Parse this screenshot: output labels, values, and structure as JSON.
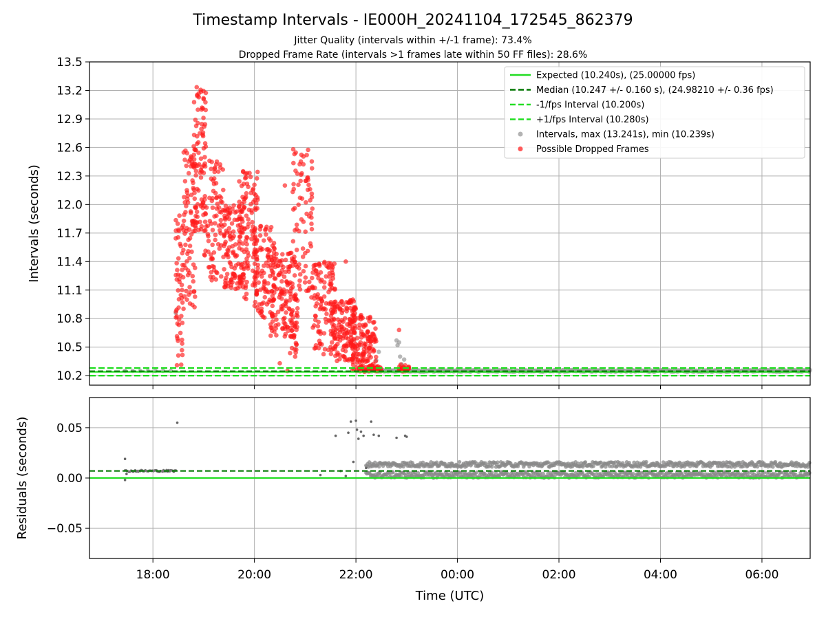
{
  "figure": {
    "title": "Timestamp Intervals - IE000H_20241104_172545_862379",
    "subtitle1": "Jitter Quality (intervals within +/-1 frame): 73.4%",
    "subtitle2": "Dropped Frame Rate (intervals >1 frames late within 50 FF files): 28.6%"
  },
  "chart_data": [
    {
      "type": "scatter",
      "panel": "top",
      "ylabel": "Intervals (seconds)",
      "ylim": [
        10.1,
        13.5
      ],
      "yticks": [
        10.2,
        10.5,
        10.8,
        11.1,
        11.4,
        11.7,
        12.0,
        12.3,
        12.6,
        12.9,
        13.2,
        13.5
      ],
      "ytick_labels": [
        "10.2",
        "10.5",
        "10.8",
        "11.1",
        "11.4",
        "11.7",
        "12.0",
        "12.3",
        "12.6",
        "12.9",
        "13.2",
        "13.5"
      ],
      "xlim_hours": [
        16.75,
        30.95
      ],
      "grid": true,
      "legend_position": "upper right",
      "legend": [
        {
          "label": "Expected (10.240s), (25.00000 fps)",
          "style": "solid-line",
          "color": "#22dd22"
        },
        {
          "label": "Median (10.247 +/- 0.160 s), (24.98210 +/- 0.36 fps)",
          "style": "dashed-line",
          "color": "#007700"
        },
        {
          "label": "-1/fps Interval (10.200s)",
          "style": "dashed-line",
          "color": "#22dd22"
        },
        {
          "label": "+1/fps Interval (10.280s)",
          "style": "dashed-line",
          "color": "#22dd22"
        },
        {
          "label": "Intervals, max (13.241s), min (10.239s)",
          "style": "marker",
          "color": "#999999"
        },
        {
          "label": "Possible Dropped Frames",
          "style": "marker",
          "color": "#ff2222"
        }
      ],
      "hlines": {
        "expected": 10.24,
        "median": 10.247,
        "minus_1fps": 10.2,
        "plus_1fps": 10.28
      },
      "series": [
        {
          "name": "Intervals, max (13.241s), min (10.239s)",
          "color": "#999999",
          "points": [
            [
              17.45,
              10.25
            ],
            [
              17.6,
              10.25
            ],
            [
              17.75,
              10.25
            ],
            [
              17.9,
              10.25
            ],
            [
              18.05,
              10.25
            ],
            [
              18.2,
              10.25
            ],
            [
              18.35,
              10.25
            ],
            [
              18.45,
              10.86
            ],
            [
              22.45,
              10.45
            ],
            [
              22.4,
              10.36
            ],
            [
              22.8,
              10.57
            ],
            [
              22.85,
              10.55
            ],
            [
              22.82,
              10.52
            ],
            [
              22.95,
              10.37
            ],
            [
              22.9,
              10.32
            ],
            [
              22.87,
              10.4
            ]
          ],
          "band": {
            "x_start": 22.2,
            "x_end": 30.95,
            "y": 10.25
          }
        },
        {
          "name": "Possible Dropped Frames",
          "color": "#ff2222",
          "clusters": [
            {
              "x_start": 18.45,
              "x_end": 18.6,
              "y_low": 10.3,
              "y_high": 11.9,
              "count": 55
            },
            {
              "x_start": 18.6,
              "x_end": 18.85,
              "y_low": 10.9,
              "y_high": 12.6,
              "count": 80
            },
            {
              "x_start": 18.8,
              "x_end": 19.05,
              "y_low": 11.7,
              "y_high": 13.24,
              "count": 90
            },
            {
              "x_start": 19.0,
              "x_end": 19.4,
              "y_low": 11.2,
              "y_high": 12.5,
              "count": 90
            },
            {
              "x_start": 19.4,
              "x_end": 19.8,
              "y_low": 11.1,
              "y_high": 12.0,
              "count": 120
            },
            {
              "x_start": 19.7,
              "x_end": 20.1,
              "y_low": 11.0,
              "y_high": 12.35,
              "count": 110
            },
            {
              "x_start": 20.0,
              "x_end": 20.4,
              "y_low": 10.8,
              "y_high": 11.8,
              "count": 110
            },
            {
              "x_start": 20.3,
              "x_end": 20.8,
              "y_low": 10.6,
              "y_high": 11.5,
              "count": 120
            },
            {
              "x_start": 20.7,
              "x_end": 20.85,
              "y_low": 10.4,
              "y_high": 11.2,
              "count": 35
            },
            {
              "x_start": 20.75,
              "x_end": 21.15,
              "y_low": 11.0,
              "y_high": 12.6,
              "count": 90
            },
            {
              "x_start": 21.15,
              "x_end": 21.6,
              "y_low": 10.4,
              "y_high": 11.4,
              "count": 110
            },
            {
              "x_start": 21.5,
              "x_end": 22.0,
              "y_low": 10.35,
              "y_high": 11.0,
              "count": 140
            },
            {
              "x_start": 21.9,
              "x_end": 22.4,
              "y_low": 10.25,
              "y_high": 10.85,
              "count": 140
            },
            {
              "x_start": 22.0,
              "x_end": 22.5,
              "y_low": 10.24,
              "y_high": 10.3,
              "count": 45
            },
            {
              "x_start": 22.85,
              "x_end": 23.05,
              "y_low": 10.24,
              "y_high": 10.32,
              "count": 30
            }
          ],
          "extra_points": [
            [
              20.6,
              12.2
            ],
            [
              21.8,
              11.4
            ],
            [
              20.5,
              10.33
            ],
            [
              22.85,
              10.68
            ],
            [
              20.65,
              10.25
            ]
          ]
        }
      ]
    },
    {
      "type": "scatter",
      "panel": "bottom",
      "xlabel": "Time (UTC)",
      "ylabel": "Residuals (seconds)",
      "ylim": [
        -0.08,
        0.08
      ],
      "yticks": [
        -0.05,
        0.0,
        0.05
      ],
      "ytick_labels": [
        "−0.05",
        "0.00",
        "0.05"
      ],
      "xlim_hours": [
        16.75,
        30.95
      ],
      "xticks_hours": [
        18,
        20,
        22,
        24,
        26,
        28,
        30
      ],
      "xtick_labels": [
        "18:00",
        "20:00",
        "22:00",
        "00:00",
        "02:00",
        "04:00",
        "06:00"
      ],
      "grid": true,
      "hlines": {
        "expected": 0.0,
        "median": 0.007
      },
      "series": [
        {
          "name": "residuals",
          "color": "#777777",
          "segment": {
            "x_start": 17.45,
            "x_end": 18.45,
            "y": 0.007
          },
          "outliers": [
            [
              17.45,
              0.019
            ],
            [
              17.45,
              -0.002
            ],
            [
              17.48,
              0.004
            ],
            [
              18.48,
              0.055
            ],
            [
              21.3,
              0.003
            ],
            [
              21.6,
              0.042
            ],
            [
              21.85,
              0.045
            ],
            [
              21.9,
              0.056
            ],
            [
              21.95,
              0.016
            ],
            [
              22.0,
              0.057
            ],
            [
              22.02,
              0.048
            ],
            [
              22.05,
              0.039
            ],
            [
              22.1,
              0.046
            ],
            [
              22.15,
              0.042
            ],
            [
              22.3,
              0.056
            ],
            [
              22.35,
              0.043
            ],
            [
              22.45,
              0.042
            ],
            [
              22.8,
              0.04
            ],
            [
              22.97,
              0.042
            ],
            [
              23.0,
              0.041
            ],
            [
              21.7,
              0.007
            ],
            [
              21.8,
              0.002
            ],
            [
              22.2,
              0.01
            ]
          ],
          "bands": [
            {
              "x_start": 22.2,
              "x_end": 30.95,
              "y_low": 0.0,
              "y_high": 0.006
            },
            {
              "x_start": 22.2,
              "x_end": 30.95,
              "y_low": 0.011,
              "y_high": 0.016
            }
          ]
        }
      ]
    }
  ]
}
